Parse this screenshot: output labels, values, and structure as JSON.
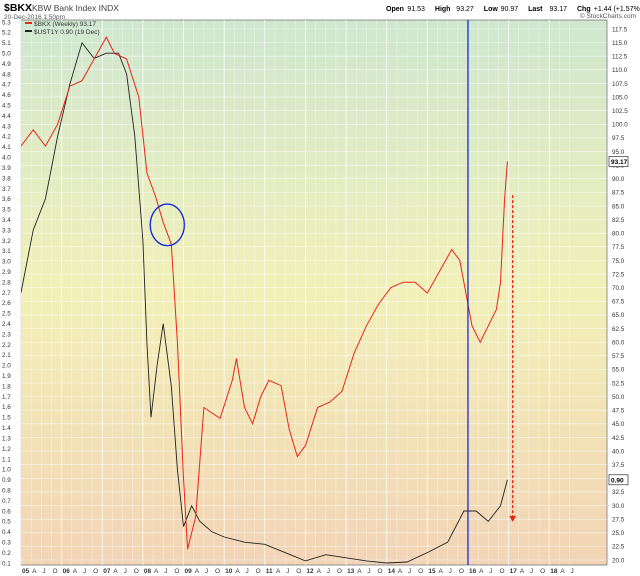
{
  "header": {
    "symbol": "$BKX",
    "name": "KBW Bank Index INDX",
    "date": "20-Dec-2016 1:50pm",
    "source": "© StockCharts.com",
    "quote": [
      {
        "label": "Open",
        "value": "91.53"
      },
      {
        "label": "High",
        "value": "93.27"
      },
      {
        "label": "Low",
        "value": "90.97"
      },
      {
        "label": "Last",
        "value": "93.17"
      },
      {
        "label": "Chg",
        "value": "+1.44 (+1.57%)"
      }
    ]
  },
  "legend": [
    {
      "text": "$BKX (Weekly) 93.17",
      "color": "#e8251a"
    },
    {
      "text": "$UST1Y 0.90 (19 Dec)",
      "color": "#222222"
    }
  ],
  "chart_data": {
    "type": "line",
    "x_range": [
      2005.0,
      2019.2
    ],
    "left_axis": {
      "min": 0.1,
      "max": 5.3,
      "step": 0.1
    },
    "right_axis": {
      "min": 20.0,
      "max": 117.5,
      "step": 2.5
    },
    "x_tick_labels": [
      {
        "x": 2005.0,
        "label": "05"
      },
      {
        "x": 2005.25,
        "label": "A"
      },
      {
        "x": 2005.5,
        "label": "J"
      },
      {
        "x": 2005.75,
        "label": "O"
      },
      {
        "x": 2006.0,
        "label": "06"
      },
      {
        "x": 2006.25,
        "label": "A"
      },
      {
        "x": 2006.5,
        "label": "J"
      },
      {
        "x": 2006.75,
        "label": "O"
      },
      {
        "x": 2007.0,
        "label": "07"
      },
      {
        "x": 2007.25,
        "label": "A"
      },
      {
        "x": 2007.5,
        "label": "J"
      },
      {
        "x": 2007.75,
        "label": "O"
      },
      {
        "x": 2008.0,
        "label": "08"
      },
      {
        "x": 2008.25,
        "label": "A"
      },
      {
        "x": 2008.5,
        "label": "J"
      },
      {
        "x": 2008.75,
        "label": "O"
      },
      {
        "x": 2009.0,
        "label": "09"
      },
      {
        "x": 2009.25,
        "label": "A"
      },
      {
        "x": 2009.5,
        "label": "J"
      },
      {
        "x": 2009.75,
        "label": "O"
      },
      {
        "x": 2010.0,
        "label": "10"
      },
      {
        "x": 2010.25,
        "label": "A"
      },
      {
        "x": 2010.5,
        "label": "J"
      },
      {
        "x": 2010.75,
        "label": "O"
      },
      {
        "x": 2011.0,
        "label": "11"
      },
      {
        "x": 2011.25,
        "label": "A"
      },
      {
        "x": 2011.5,
        "label": "J"
      },
      {
        "x": 2011.75,
        "label": "O"
      },
      {
        "x": 2012.0,
        "label": "12"
      },
      {
        "x": 2012.25,
        "label": "A"
      },
      {
        "x": 2012.5,
        "label": "J"
      },
      {
        "x": 2012.75,
        "label": "O"
      },
      {
        "x": 2013.0,
        "label": "13"
      },
      {
        "x": 2013.25,
        "label": "A"
      },
      {
        "x": 2013.5,
        "label": "J"
      },
      {
        "x": 2013.75,
        "label": "O"
      },
      {
        "x": 2014.0,
        "label": "14"
      },
      {
        "x": 2014.25,
        "label": "A"
      },
      {
        "x": 2014.5,
        "label": "J"
      },
      {
        "x": 2014.75,
        "label": "O"
      },
      {
        "x": 2015.0,
        "label": "15"
      },
      {
        "x": 2015.25,
        "label": "A"
      },
      {
        "x": 2015.5,
        "label": "J"
      },
      {
        "x": 2015.75,
        "label": "O"
      },
      {
        "x": 2016.0,
        "label": "16"
      },
      {
        "x": 2016.25,
        "label": "A"
      },
      {
        "x": 2016.5,
        "label": "J"
      },
      {
        "x": 2016.75,
        "label": "O"
      },
      {
        "x": 2017.0,
        "label": "17"
      },
      {
        "x": 2017.25,
        "label": "A"
      },
      {
        "x": 2017.5,
        "label": "J"
      },
      {
        "x": 2017.75,
        "label": "O"
      },
      {
        "x": 2018.0,
        "label": "18"
      },
      {
        "x": 2018.25,
        "label": "A"
      },
      {
        "x": 2018.5,
        "label": "J"
      }
    ],
    "series": [
      {
        "name": "$BKX (Weekly) 93.17",
        "axis": "right",
        "color": "#e8251a",
        "points": [
          [
            2005.0,
            96
          ],
          [
            2005.3,
            99
          ],
          [
            2005.6,
            96
          ],
          [
            2005.9,
            100
          ],
          [
            2006.2,
            107
          ],
          [
            2006.5,
            108
          ],
          [
            2006.8,
            112
          ],
          [
            2007.1,
            116
          ],
          [
            2007.3,
            113
          ],
          [
            2007.6,
            112
          ],
          [
            2007.9,
            105
          ],
          [
            2008.1,
            91
          ],
          [
            2008.3,
            87
          ],
          [
            2008.5,
            82
          ],
          [
            2008.7,
            78
          ],
          [
            2008.85,
            60
          ],
          [
            2009.0,
            35
          ],
          [
            2009.1,
            22
          ],
          [
            2009.3,
            28
          ],
          [
            2009.5,
            48
          ],
          [
            2009.7,
            47
          ],
          [
            2009.9,
            46
          ],
          [
            2010.2,
            53
          ],
          [
            2010.3,
            57
          ],
          [
            2010.5,
            48
          ],
          [
            2010.7,
            45
          ],
          [
            2010.9,
            50
          ],
          [
            2011.1,
            53
          ],
          [
            2011.4,
            52
          ],
          [
            2011.6,
            44
          ],
          [
            2011.8,
            39
          ],
          [
            2012.0,
            41
          ],
          [
            2012.3,
            48
          ],
          [
            2012.6,
            49
          ],
          [
            2012.9,
            51
          ],
          [
            2013.2,
            58
          ],
          [
            2013.5,
            63
          ],
          [
            2013.8,
            67
          ],
          [
            2014.1,
            70
          ],
          [
            2014.4,
            71
          ],
          [
            2014.7,
            71
          ],
          [
            2015.0,
            69
          ],
          [
            2015.3,
            73
          ],
          [
            2015.6,
            77
          ],
          [
            2015.8,
            75
          ],
          [
            2016.1,
            63
          ],
          [
            2016.3,
            60
          ],
          [
            2016.5,
            63
          ],
          [
            2016.7,
            66
          ],
          [
            2016.8,
            71
          ],
          [
            2016.9,
            86
          ],
          [
            2016.97,
            93.2
          ]
        ]
      },
      {
        "name": "$UST1Y 0.90 (19 Dec)",
        "axis": "left",
        "color": "#222222",
        "points": [
          [
            2005.0,
            2.7
          ],
          [
            2005.3,
            3.3
          ],
          [
            2005.6,
            3.6
          ],
          [
            2005.9,
            4.2
          ],
          [
            2006.2,
            4.7
          ],
          [
            2006.5,
            5.1
          ],
          [
            2006.8,
            4.95
          ],
          [
            2007.1,
            5.0
          ],
          [
            2007.4,
            5.0
          ],
          [
            2007.6,
            4.8
          ],
          [
            2007.8,
            4.2
          ],
          [
            2008.0,
            3.2
          ],
          [
            2008.1,
            2.2
          ],
          [
            2008.2,
            1.5
          ],
          [
            2008.35,
            2.0
          ],
          [
            2008.5,
            2.4
          ],
          [
            2008.7,
            1.8
          ],
          [
            2008.85,
            1.0
          ],
          [
            2009.0,
            0.45
          ],
          [
            2009.2,
            0.65
          ],
          [
            2009.4,
            0.5
          ],
          [
            2009.7,
            0.4
          ],
          [
            2010.0,
            0.35
          ],
          [
            2010.5,
            0.3
          ],
          [
            2011.0,
            0.28
          ],
          [
            2011.5,
            0.2
          ],
          [
            2012.0,
            0.12
          ],
          [
            2012.5,
            0.18
          ],
          [
            2013.0,
            0.15
          ],
          [
            2013.5,
            0.12
          ],
          [
            2014.0,
            0.1
          ],
          [
            2014.5,
            0.11
          ],
          [
            2015.0,
            0.2
          ],
          [
            2015.5,
            0.3
          ],
          [
            2015.9,
            0.6
          ],
          [
            2016.2,
            0.6
          ],
          [
            2016.5,
            0.5
          ],
          [
            2016.8,
            0.65
          ],
          [
            2016.97,
            0.9
          ]
        ]
      }
    ],
    "markers": {
      "vertical_line": {
        "x": 2016.0,
        "color": "#1a2bd8"
      },
      "ellipse": {
        "cx": 2008.6,
        "cy_left_axis": 3.35,
        "rx_years": 0.42,
        "ry_left_axis": 0.2,
        "color": "#1a2bd8"
      },
      "dashed_arrow": {
        "x": 2017.1,
        "from_right_axis": 87.0,
        "to_right_axis": 27.0,
        "color": "#e8251a"
      }
    },
    "price_badges": [
      {
        "value": "93.17",
        "axis": "right",
        "at": 93.17
      },
      {
        "value": "0.90",
        "axis": "left",
        "at": 0.9
      }
    ],
    "background_gradient": [
      "#cfe7d0",
      "#f2f0b8",
      "#f2d4b6"
    ]
  }
}
